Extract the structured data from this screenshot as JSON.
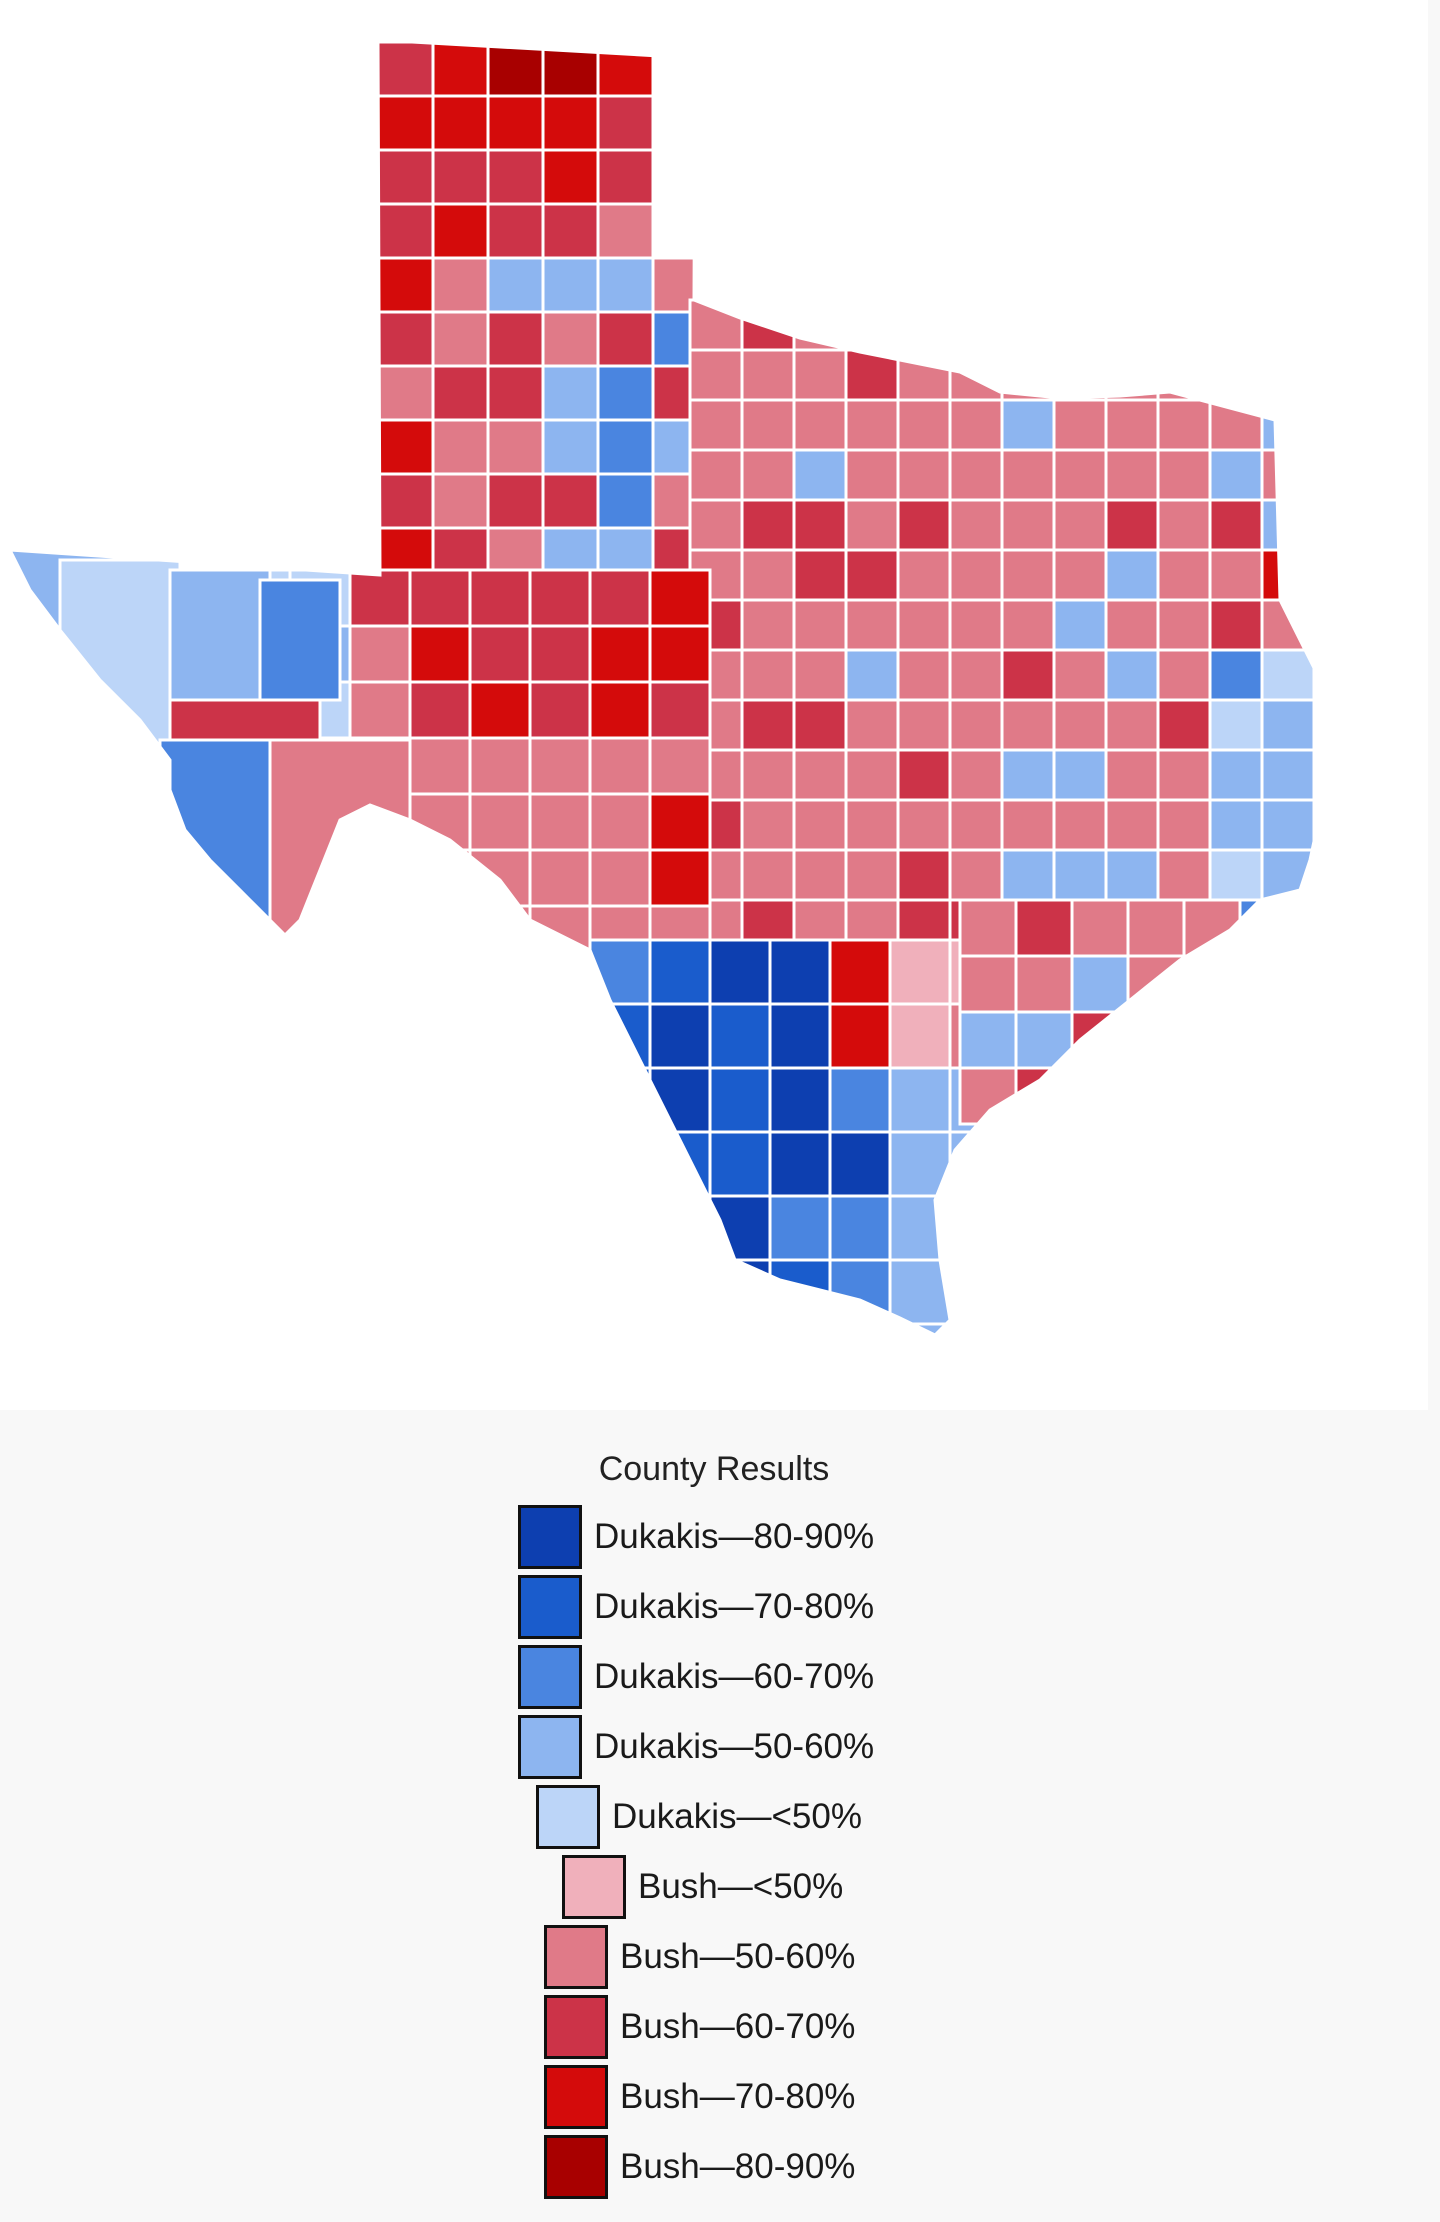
{
  "map": {
    "subject": "Texas county results",
    "colors": {
      "D80": "#0d3fb0",
      "D70": "#1a5ccc",
      "D60": "#4a85e0",
      "D50": "#8db5f0",
      "D40": "#bcd5f8",
      "R40": "#f0b0bb",
      "R50": "#e07a88",
      "R60": "#cc3348",
      "R70": "#d40b0b",
      "R80": "#a80000"
    }
  },
  "legend": {
    "title": "County Results",
    "items": [
      {
        "key": "D80",
        "label": "Dukakis—80-90%",
        "color": "#0d3fb0"
      },
      {
        "key": "D70",
        "label": "Dukakis—70-80%",
        "color": "#1a5ccc"
      },
      {
        "key": "D60",
        "label": "Dukakis—60-70%",
        "color": "#4a85e0"
      },
      {
        "key": "D50",
        "label": "Dukakis—50-60%",
        "color": "#8db5f0"
      },
      {
        "key": "D40",
        "label": "Dukakis—<50%",
        "color": "#bcd5f8"
      },
      {
        "key": "R40",
        "label": "Bush—<50%",
        "color": "#f0b0bb"
      },
      {
        "key": "R50",
        "label": "Bush—50-60%",
        "color": "#e07a88"
      },
      {
        "key": "R60",
        "label": "Bush—60-70%",
        "color": "#cc3348"
      },
      {
        "key": "R70",
        "label": "Bush—70-80%",
        "color": "#d40b0b"
      },
      {
        "key": "R80",
        "label": "Bush—80-90%",
        "color": "#a80000"
      }
    ]
  }
}
